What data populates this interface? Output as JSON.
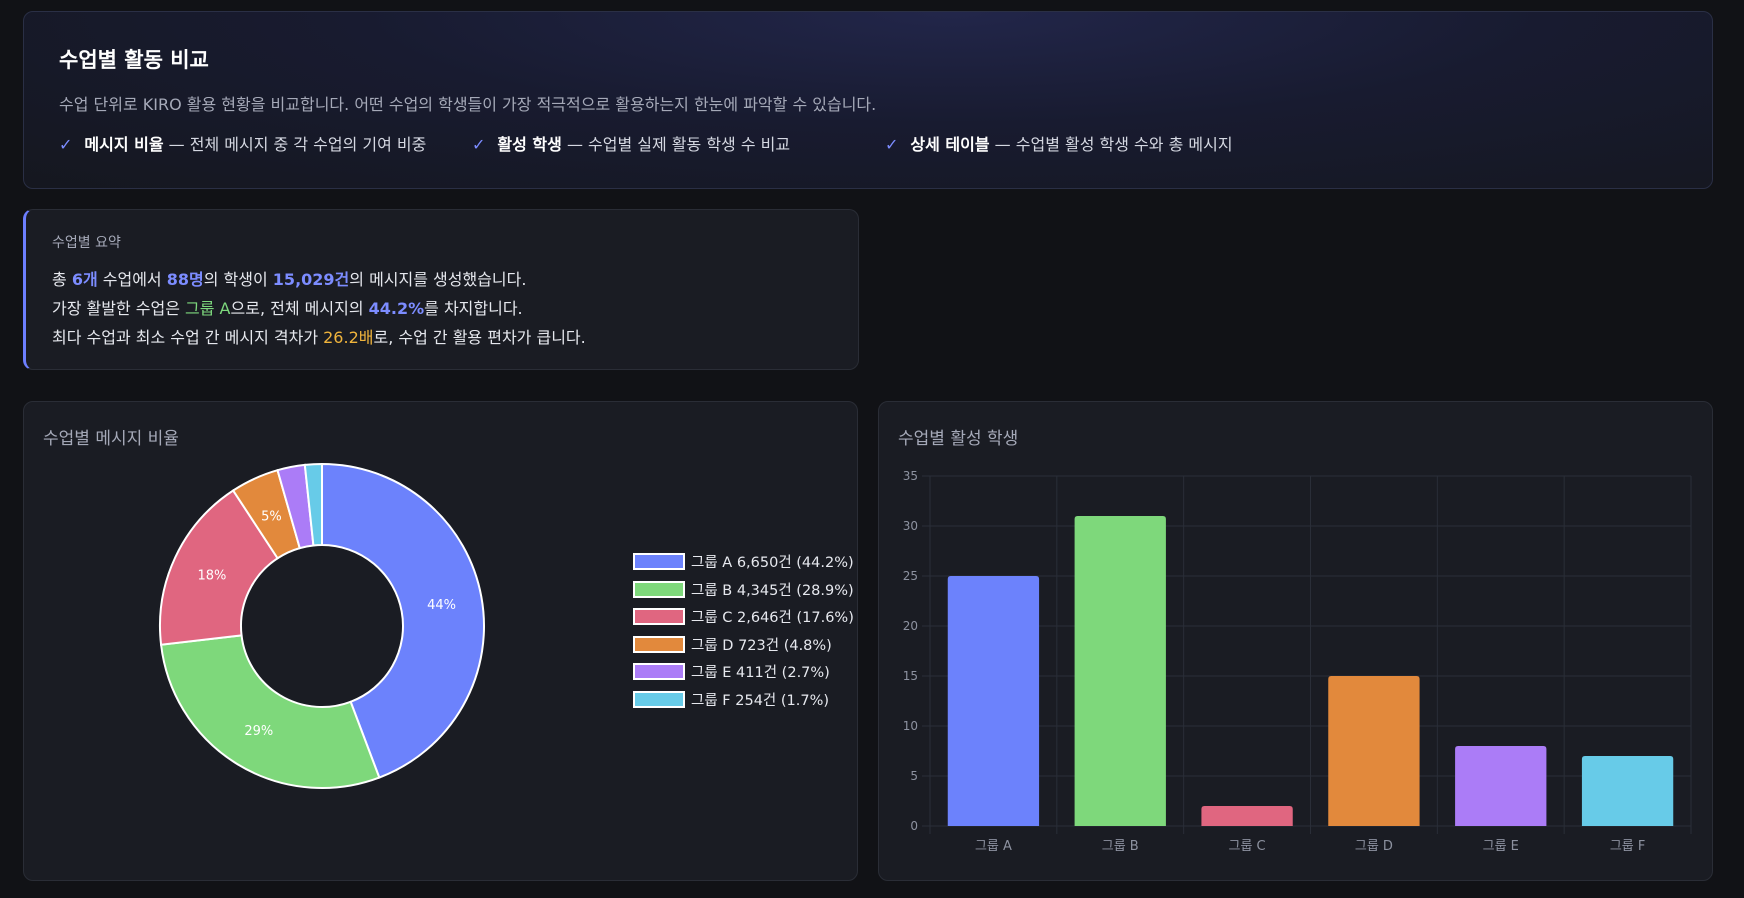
{
  "header": {
    "title": "수업별 활동 비교",
    "description": "수업 단위로 KIRO 활용 현황을 비교합니다. 어떤 수업의 학생들이 가장 적극적으로 활용하는지 한눈에 파악할 수 있습니다.",
    "features": [
      {
        "check": "✓",
        "name": "메시지 비율",
        "text": " — 전체 메시지 중 각 수업의 기여 비중"
      },
      {
        "check": "✓",
        "name": "활성 학생",
        "text": " — 수업별 실제 활동 학생 수 비교"
      },
      {
        "check": "✓",
        "name": "상세 테이블",
        "text": " — 수업별 활성 학생 수와 총 메시지"
      }
    ]
  },
  "summary": {
    "title": "수업별 요약",
    "line1": {
      "a": "총 ",
      "b": "6개",
      "c": " 수업에서 ",
      "d": "88명",
      "e": "의 학생이 ",
      "f": "15,029건",
      "g": "의 메시지를 생성했습니다."
    },
    "line2": {
      "a": "가장 활발한 수업은 ",
      "b": "그룹 A",
      "c": "으로, 전체 메시지의 ",
      "d": "44.2%",
      "e": "를 차지합니다."
    },
    "line3": {
      "a": "최다 수업과 최소 수업 간 메시지 격차가 ",
      "b": "26.2배",
      "c": "로, 수업 간 활용 편차가 큽니다."
    }
  },
  "colors": {
    "accent": "#7c8cff",
    "group_a": "#6c82fc",
    "group_b": "#7ed87b",
    "group_c": "#e06680",
    "group_d": "#e2893c",
    "group_e": "#ab7cf7",
    "group_f": "#67cbe8"
  },
  "chart_data": [
    {
      "type": "pie",
      "title": "수업별 메시지 비율",
      "categories": [
        "그룹 A",
        "그룹 B",
        "그룹 C",
        "그룹 D",
        "그룹 E",
        "그룹 F"
      ],
      "values": [
        6650,
        4345,
        2646,
        723,
        411,
        254
      ],
      "slice_labels": [
        "44%",
        "29%",
        "18%",
        "5%",
        "",
        ""
      ],
      "legend": [
        "그룹 A  6,650건 (44.2%)",
        "그룹 B  4,345건 (28.9%)",
        "그룹 C  2,646건 (17.6%)",
        "그룹 D  723건 (4.8%)",
        "그룹 E  411건 (2.7%)",
        "그룹 F  254건 (1.7%)"
      ],
      "legend_placement": "right",
      "colors": [
        "#6c82fc",
        "#7ed87b",
        "#e06680",
        "#e2893c",
        "#ab7cf7",
        "#67cbe8"
      ]
    },
    {
      "type": "bar",
      "title": "수업별 활성 학생",
      "categories": [
        "그룹 A",
        "그룹 B",
        "그룹 C",
        "그룹 D",
        "그룹 E",
        "그룹 F"
      ],
      "values": [
        25,
        31,
        2,
        15,
        8,
        7
      ],
      "ylim": [
        0,
        35
      ],
      "yticks": [
        0,
        5,
        10,
        15,
        20,
        25,
        30,
        35
      ],
      "grid": true,
      "colors": [
        "#6c82fc",
        "#7ed87b",
        "#e06680",
        "#e2893c",
        "#ab7cf7",
        "#67cbe8"
      ]
    }
  ]
}
